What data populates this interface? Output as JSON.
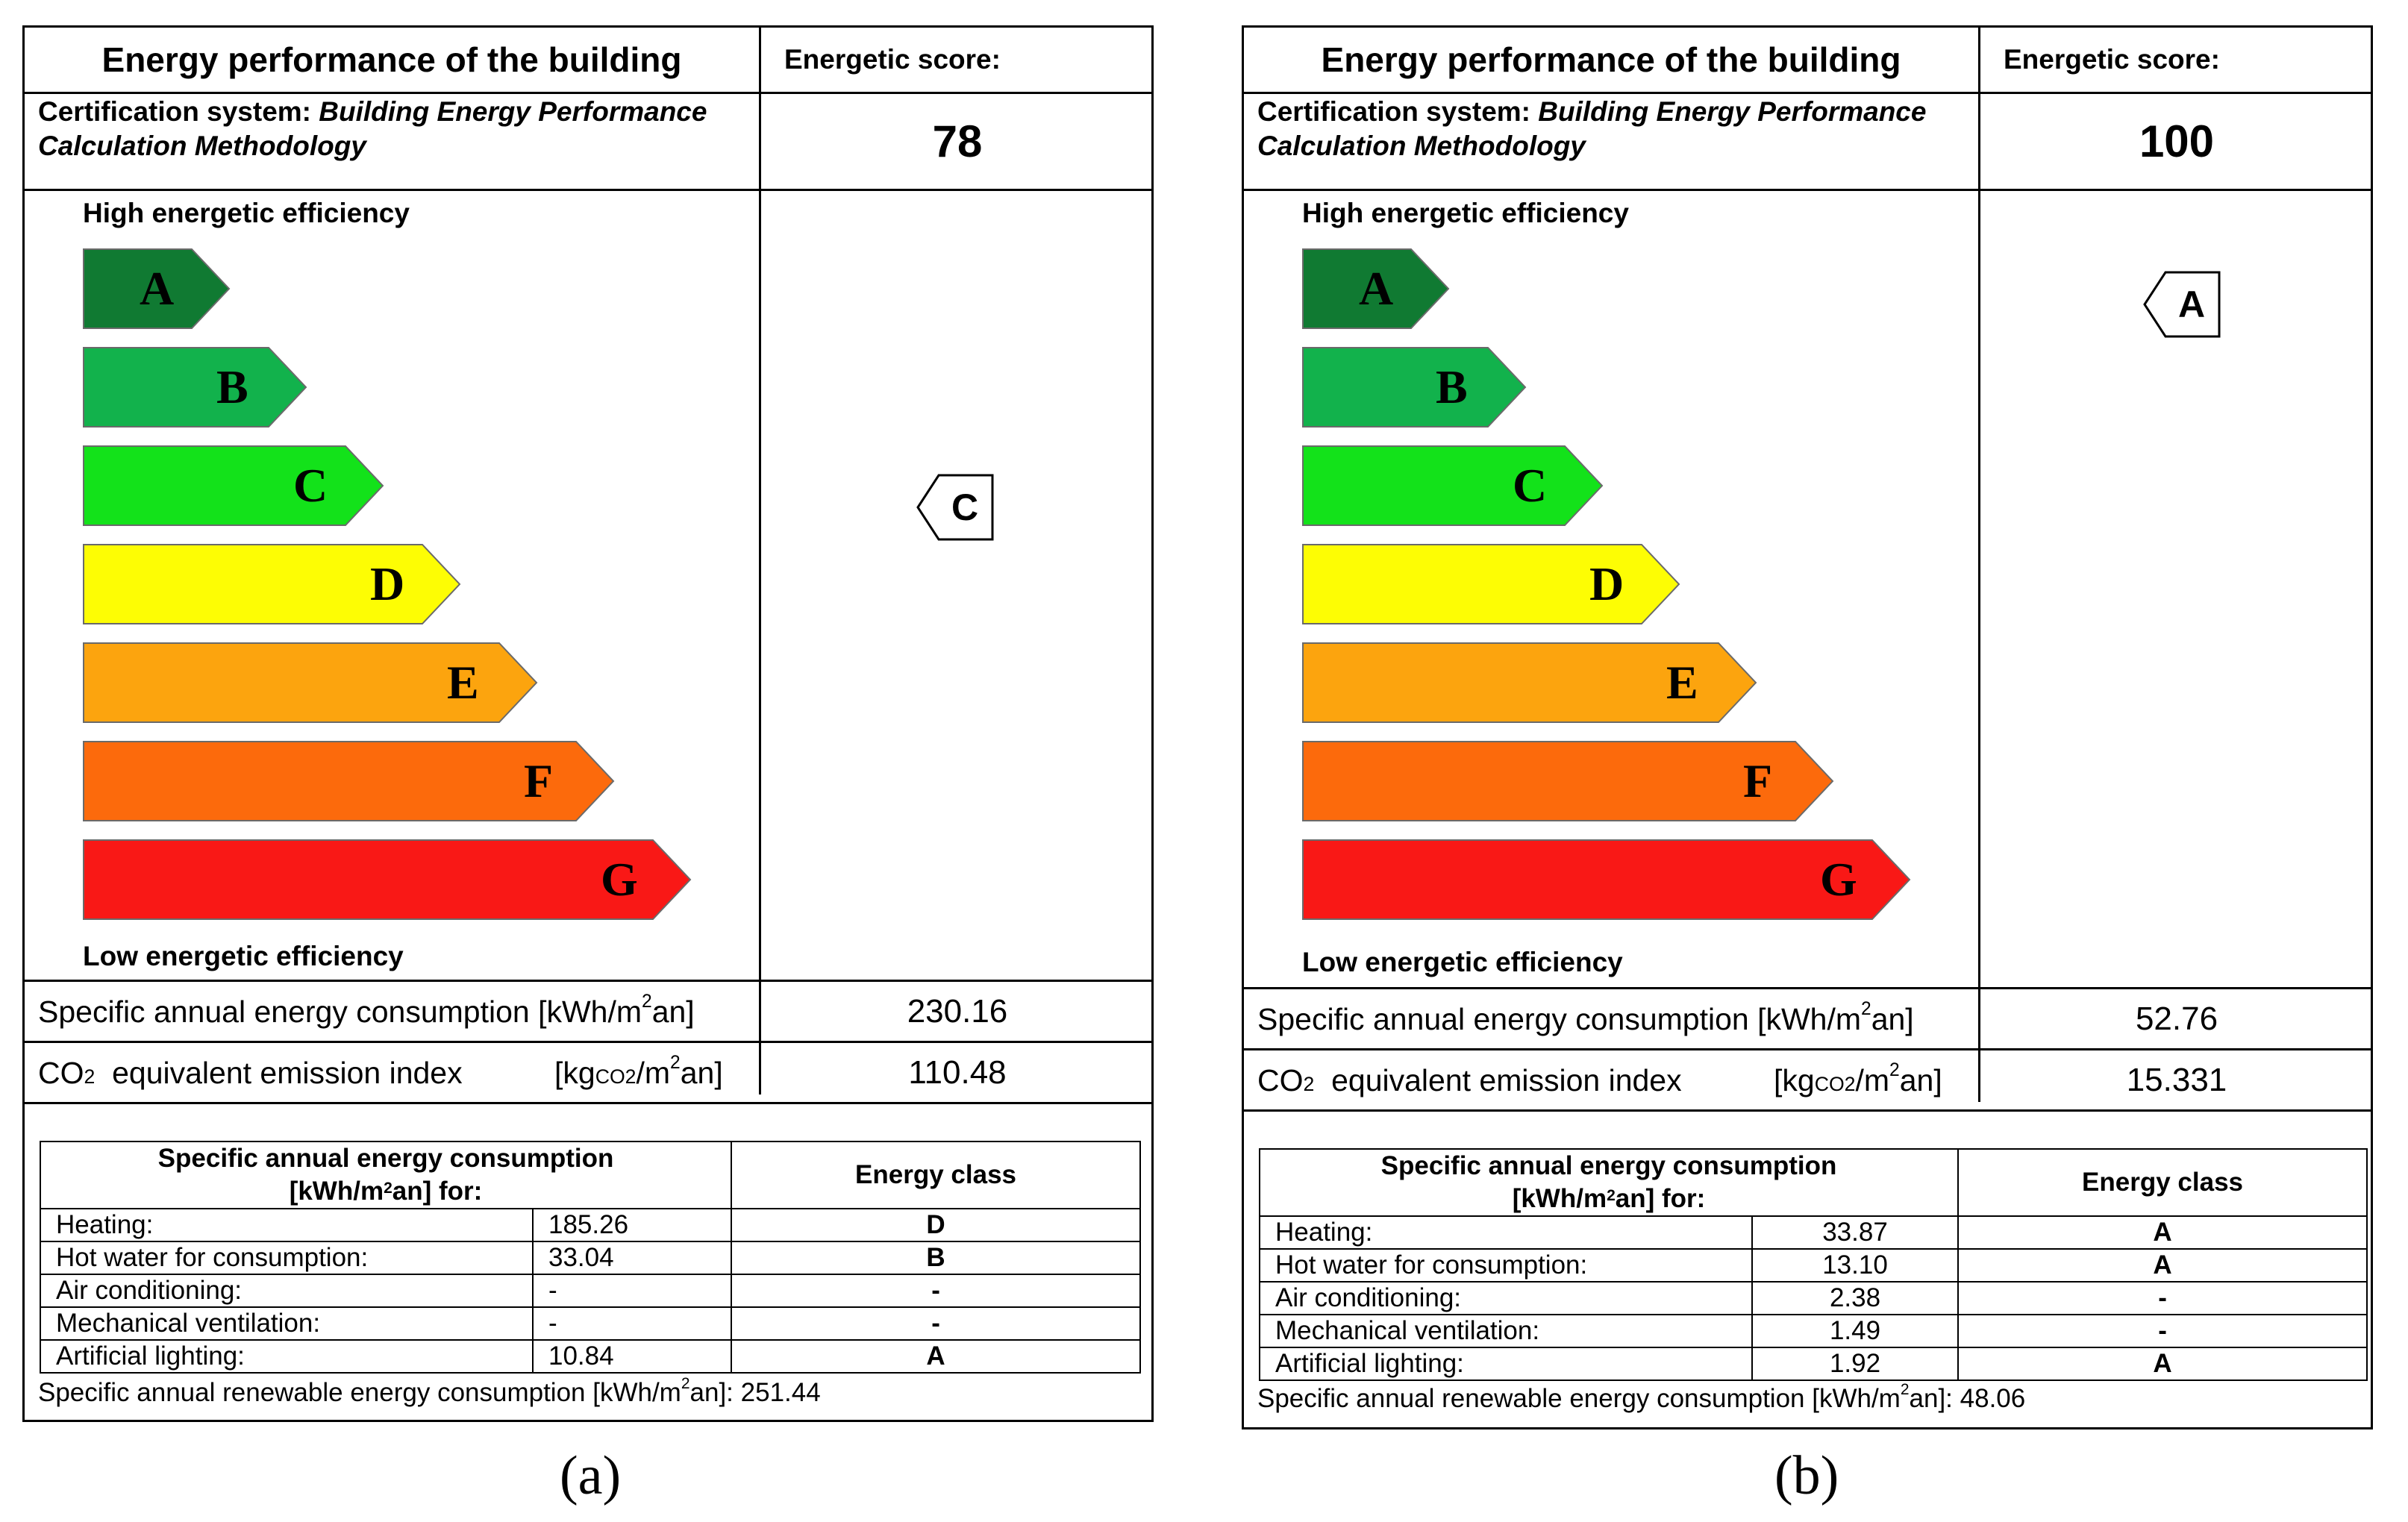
{
  "certificates": [
    {
      "id": "a",
      "caption": "(a)",
      "title": "Energy performance of the building",
      "cert_system_label": "Certification system:",
      "cert_system_value_1": "Building Energy Performance",
      "cert_system_value_2": "Calculation Methodology",
      "score_label": "Energetic score:",
      "score": "78",
      "high_label": "High energetic efficiency",
      "low_label": "Low energetic efficiency",
      "rating": "C",
      "consumption_label": "Specific annual energy consumption [kWh/m",
      "consumption_unit_tail": "an]",
      "consumption_value": "230.16",
      "co2_label_pre": "CO",
      "co2_sub": "2",
      "co2_label_post": "  equivalent emission index",
      "co2_unit_pre": "[kg",
      "co2_unit_sub": "CO2",
      "co2_unit_post": "/m",
      "co2_unit_tail": "an]",
      "co2_value": "110.48",
      "breakdown_header_1": "Specific annual energy consumption",
      "breakdown_header_2_pre": "[kWh/m",
      "breakdown_header_2_post": "an] for:",
      "energy_class_header": "Energy class",
      "rows": [
        {
          "label": "Heating:",
          "value": "185.26",
          "cls": "D"
        },
        {
          "label": "Hot water for consumption:",
          "value": "33.04",
          "cls": "B"
        },
        {
          "label": "Air conditioning:",
          "value": "-",
          "cls": "-"
        },
        {
          "label": "Mechanical ventilation:",
          "value": "-",
          "cls": "-"
        },
        {
          "label": "Artificial lighting:",
          "value": "10.84",
          "cls": "A"
        }
      ],
      "renewable_pre": "Specific annual renewable energy consumption  [kWh/m",
      "renewable_post": "an]: 251.44",
      "sup2": "2"
    },
    {
      "id": "b",
      "caption": "(b)",
      "title": "Energy performance of the building",
      "cert_system_label": "Certification system:",
      "cert_system_value_1": "Building Energy Performance",
      "cert_system_value_2": "Calculation Methodology",
      "score_label": "Energetic score:",
      "score": "100",
      "high_label": "High energetic efficiency",
      "low_label": "Low energetic efficiency",
      "rating": "A",
      "consumption_label": "Specific annual energy consumption [kWh/m",
      "consumption_unit_tail": "an]",
      "consumption_value": "52.76",
      "co2_label_pre": "CO",
      "co2_sub": "2",
      "co2_label_post": "  equivalent emission index",
      "co2_unit_pre": "[kg",
      "co2_unit_sub": "CO2",
      "co2_unit_post": "/m",
      "co2_unit_tail": "an]",
      "co2_value": "15.331",
      "breakdown_header_1": "Specific annual energy consumption",
      "breakdown_header_2_pre": "[kWh/m",
      "breakdown_header_2_post": "an] for:",
      "energy_class_header": "Energy class",
      "rows": [
        {
          "label": "Heating:",
          "value": "33.87",
          "cls": "A"
        },
        {
          "label": "Hot water for consumption:",
          "value": "13.10",
          "cls": "A"
        },
        {
          "label": "Air conditioning:",
          "value": "2.38",
          "cls": "-"
        },
        {
          "label": "Mechanical ventilation:",
          "value": "1.49",
          "cls": "-"
        },
        {
          "label": "Artificial lighting:",
          "value": "1.92",
          "cls": "A"
        }
      ],
      "renewable_pre": "Specific annual renewable energy consumption  [kWh/m",
      "renewable_post": "an]: 48.06",
      "sup2": "2"
    }
  ],
  "energy_scale": [
    {
      "letter": "A",
      "color": "#107a32"
    },
    {
      "letter": "B",
      "color": "#12b24c"
    },
    {
      "letter": "C",
      "color": "#13e21a"
    },
    {
      "letter": "D",
      "color": "#fdfd04"
    },
    {
      "letter": "E",
      "color": "#fca40e"
    },
    {
      "letter": "F",
      "color": "#fc6a0c"
    },
    {
      "letter": "G",
      "color": "#f91816"
    }
  ]
}
